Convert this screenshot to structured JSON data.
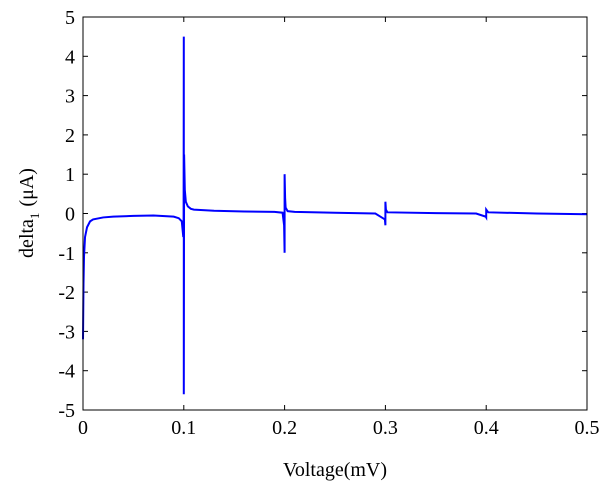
{
  "chart_data": {
    "type": "line",
    "xlabel": "Voltage(mV)",
    "ylabel_parts": [
      "delta",
      "1",
      "(μA)"
    ],
    "x": [
      0,
      0.0005,
      0.001,
      0.002,
      0.004,
      0.007,
      0.01,
      0.02,
      0.03,
      0.05,
      0.07,
      0.09,
      0.095,
      0.098,
      0.0995,
      0.0998,
      0.1,
      0.1,
      0.1003,
      0.101,
      0.102,
      0.104,
      0.107,
      0.11,
      0.13,
      0.16,
      0.19,
      0.198,
      0.1995,
      0.2,
      0.2,
      0.2005,
      0.201,
      0.203,
      0.21,
      0.25,
      0.29,
      0.2995,
      0.3,
      0.3,
      0.3005,
      0.302,
      0.35,
      0.39,
      0.3995,
      0.4,
      0.4,
      0.402,
      0.45,
      0.5
    ],
    "values": [
      -3.2,
      -1.8,
      -1.1,
      -0.6,
      -0.35,
      -0.2,
      -0.15,
      -0.1,
      -0.08,
      -0.06,
      -0.05,
      -0.08,
      -0.12,
      -0.2,
      -0.6,
      -0.3,
      4.5,
      -4.6,
      1.5,
      0.6,
      0.3,
      0.18,
      0.12,
      0.1,
      0.07,
      0.05,
      0.04,
      0.02,
      -0.3,
      -1,
      1,
      0.4,
      0.15,
      0.06,
      0.04,
      0.02,
      0.0,
      -0.15,
      -0.3,
      0.3,
      0.1,
      0.03,
      0.01,
      0.0,
      -0.08,
      -0.1,
      0.1,
      0.03,
      0.0,
      -0.02
    ],
    "color": "#0000ff",
    "xlim": [
      0,
      0.5
    ],
    "xticks": [
      0,
      0.1,
      0.2,
      0.3,
      0.4,
      0.5
    ],
    "ylim": [
      -5,
      5
    ],
    "yticks": [
      -5,
      -4,
      -3,
      -2,
      -1,
      0,
      1,
      2,
      3,
      4,
      5
    ],
    "grid": false
  }
}
